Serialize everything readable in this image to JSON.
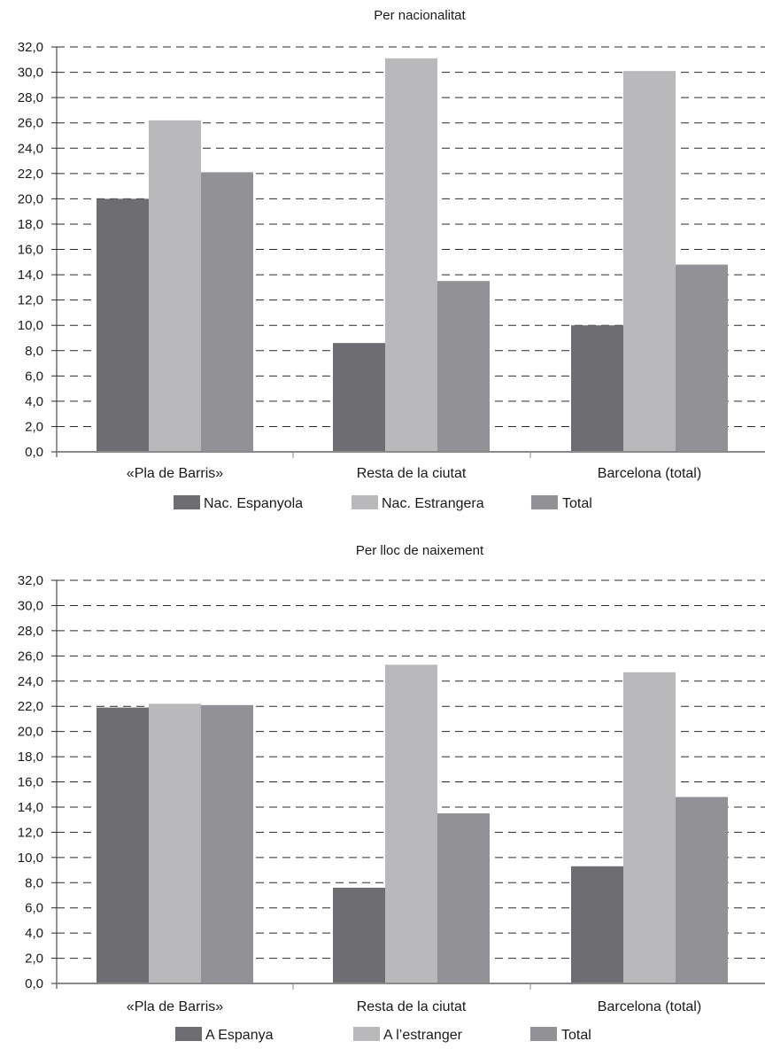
{
  "chart_data": [
    {
      "type": "bar",
      "title": "Per nacionalitat",
      "categories": [
        "«Pla de Barris»",
        "Resta de la ciutat",
        "Barcelona (total)"
      ],
      "series": [
        {
          "name": "Nac. Espanyola",
          "color": "#6e6e72",
          "values": [
            20.0,
            8.6,
            10.0
          ]
        },
        {
          "name": "Nac. Estrangera",
          "color": "#b9b9bc",
          "values": [
            26.2,
            31.1,
            30.1
          ]
        },
        {
          "name": "Total",
          "color": "#929296",
          "values": [
            22.1,
            13.5,
            14.8
          ]
        }
      ],
      "y_ticks": [
        "0,0",
        "2,0",
        "4,0",
        "6,0",
        "8,0",
        "10,0",
        "12,0",
        "14,0",
        "16,0",
        "18,0",
        "20,0",
        "22,0",
        "24,0",
        "26,0",
        "28,0",
        "30,0",
        "32,0"
      ],
      "ylim": [
        0,
        32
      ],
      "grid": true,
      "legend": "bottom"
    },
    {
      "type": "bar",
      "title": "Per lloc de naixement",
      "categories": [
        "«Pla de Barris»",
        "Resta de la ciutat",
        "Barcelona (total)"
      ],
      "series": [
        {
          "name": "A Espanya",
          "color": "#6e6e72",
          "values": [
            21.9,
            7.6,
            9.3
          ]
        },
        {
          "name": "A l’estranger",
          "color": "#b9b9bc",
          "values": [
            22.2,
            25.3,
            24.7
          ]
        },
        {
          "name": "Total",
          "color": "#929296",
          "values": [
            22.1,
            13.5,
            14.8
          ]
        }
      ],
      "y_ticks": [
        "0,0",
        "2,0",
        "4,0",
        "6,0",
        "8,0",
        "10,0",
        "12,0",
        "14,0",
        "16,0",
        "18,0",
        "20,0",
        "22,0",
        "24,0",
        "26,0",
        "28,0",
        "30,0",
        "32,0"
      ],
      "ylim": [
        0,
        32
      ],
      "grid": true,
      "legend": "bottom"
    }
  ]
}
